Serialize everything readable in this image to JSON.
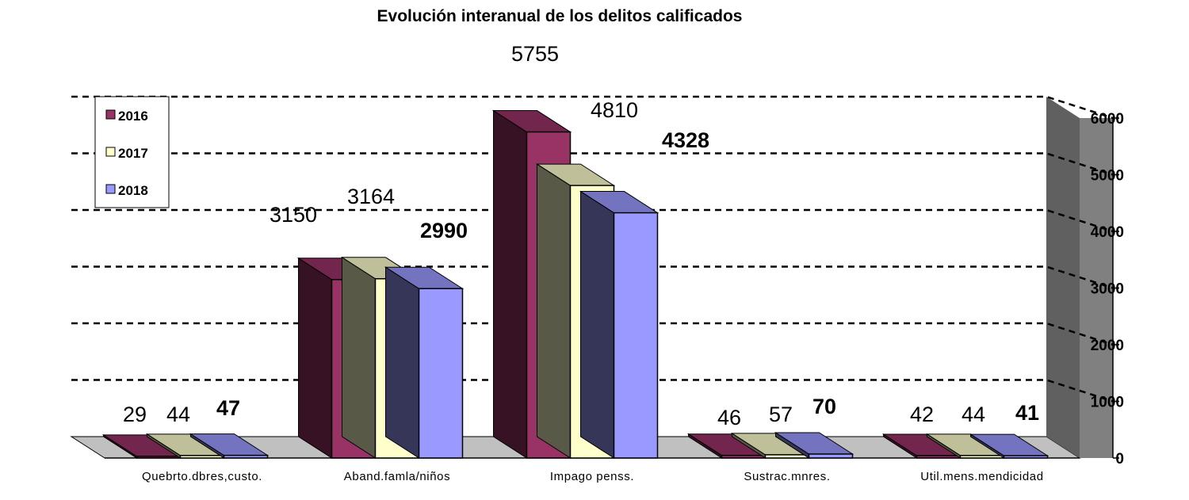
{
  "chart_data": {
    "type": "bar",
    "title": "Evolución interanual de los delitos calificados",
    "categories": [
      "Quebrto.dbres,custo.",
      "Aband.famla/niños",
      "Impago penss.",
      "Sustrac.mnres.",
      "Util.mens.mendicidad"
    ],
    "series": [
      {
        "name": "2016",
        "values": [
          29,
          3150,
          5755,
          46,
          42
        ]
      },
      {
        "name": "2017",
        "values": [
          44,
          3164,
          4810,
          57,
          44
        ]
      },
      {
        "name": "2018",
        "values": [
          47,
          2990,
          4328,
          70,
          41
        ]
      }
    ],
    "ylim": [
      0,
      6000
    ],
    "yticks": [
      "0",
      "1000",
      "2000",
      "3000",
      "4000",
      "5000",
      "6000"
    ],
    "grid": true,
    "legend": "top-left",
    "colors": {
      "2016": "#993366",
      "2017": "#FFFFCC",
      "2018": "#9999FF",
      "wall": "#808080",
      "floor": "#c0c0c0"
    }
  }
}
